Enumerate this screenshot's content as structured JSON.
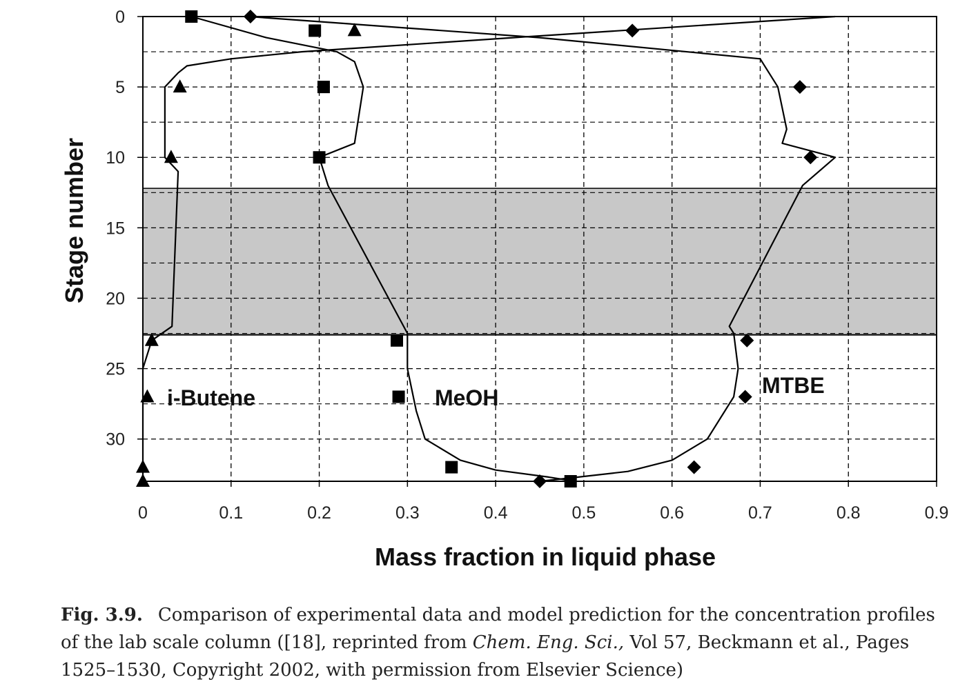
{
  "chart_data": {
    "type": "scatter",
    "xlabel": "Mass fraction in liquid phase",
    "ylabel": "Stage number",
    "xlim": [
      0,
      0.9
    ],
    "ylim": [
      0,
      33
    ],
    "y_axis_inverted": true,
    "x_ticks": [
      "0",
      "0.1",
      "0.2",
      "0.3",
      "0.4",
      "0.5",
      "0.6",
      "0.7",
      "0.8",
      "0.9"
    ],
    "y_ticks": [
      "0",
      "5",
      "10",
      "15",
      "20",
      "25",
      "30"
    ],
    "grid": true,
    "shaded_region": {
      "y_from": 12.2,
      "y_to": 22.6,
      "color": "#c8c8c8"
    },
    "series": [
      {
        "name": "i-Butene",
        "marker": "triangle",
        "points": [
          [
            0.24,
            1
          ],
          [
            0.042,
            5
          ],
          [
            0.032,
            10
          ],
          [
            0.01,
            23
          ],
          [
            0.005,
            27
          ],
          [
            0.0,
            32
          ],
          [
            0.0,
            33
          ]
        ],
        "model": [
          [
            0.785,
            0
          ],
          [
            0.42,
            1.5
          ],
          [
            0.18,
            2.5
          ],
          [
            0.1,
            3
          ],
          [
            0.05,
            3.5
          ],
          [
            0.04,
            4
          ],
          [
            0.025,
            5
          ],
          [
            0.025,
            10
          ],
          [
            0.04,
            11
          ],
          [
            0.033,
            22
          ],
          [
            0.01,
            23
          ],
          [
            0.0,
            25
          ],
          [
            0.0,
            33
          ]
        ]
      },
      {
        "name": "MeOH",
        "marker": "square",
        "points": [
          [
            0.055,
            0
          ],
          [
            0.195,
            1
          ],
          [
            0.205,
            5
          ],
          [
            0.2,
            10
          ],
          [
            0.288,
            23
          ],
          [
            0.29,
            27
          ],
          [
            0.35,
            32
          ],
          [
            0.485,
            33
          ]
        ],
        "model": [
          [
            0.055,
            0
          ],
          [
            0.14,
            1.5
          ],
          [
            0.22,
            2.5
          ],
          [
            0.24,
            3.2
          ],
          [
            0.25,
            5
          ],
          [
            0.24,
            9
          ],
          [
            0.2,
            10
          ],
          [
            0.21,
            12
          ],
          [
            0.3,
            22.5
          ],
          [
            0.3,
            25
          ],
          [
            0.31,
            28
          ],
          [
            0.32,
            30
          ],
          [
            0.36,
            31.5
          ],
          [
            0.4,
            32.2
          ],
          [
            0.46,
            32.7
          ],
          [
            0.49,
            33
          ]
        ]
      },
      {
        "name": "MTBE",
        "marker": "diamond",
        "points": [
          [
            0.122,
            0
          ],
          [
            0.555,
            1
          ],
          [
            0.745,
            5
          ],
          [
            0.757,
            10
          ],
          [
            0.685,
            23
          ],
          [
            0.683,
            27
          ],
          [
            0.625,
            32
          ],
          [
            0.45,
            33
          ]
        ],
        "model": [
          [
            0.12,
            0
          ],
          [
            0.45,
            1.5
          ],
          [
            0.7,
            3
          ],
          [
            0.72,
            5
          ],
          [
            0.73,
            8
          ],
          [
            0.725,
            9
          ],
          [
            0.785,
            10
          ],
          [
            0.748,
            12
          ],
          [
            0.665,
            22
          ],
          [
            0.67,
            22.5
          ],
          [
            0.675,
            25
          ],
          [
            0.67,
            27
          ],
          [
            0.64,
            30
          ],
          [
            0.6,
            31.5
          ],
          [
            0.55,
            32.3
          ],
          [
            0.48,
            32.8
          ],
          [
            0.45,
            33
          ]
        ]
      }
    ]
  },
  "caption": {
    "fig_label": "Fig. 3.9.",
    "text_before_journal": "Comparison of experimental data and model prediction for the concentration profiles of the lab scale column ([18], reprinted from ",
    "journal": "Chem. Eng. Sci.,",
    "text_after_journal": " Vol 57, Beckmann et al., Pages 1525–1530, Copyright 2002, with permission from Elsevier Science)"
  },
  "colors": {
    "shade": "#c8c8c8",
    "ink": "#000000"
  }
}
